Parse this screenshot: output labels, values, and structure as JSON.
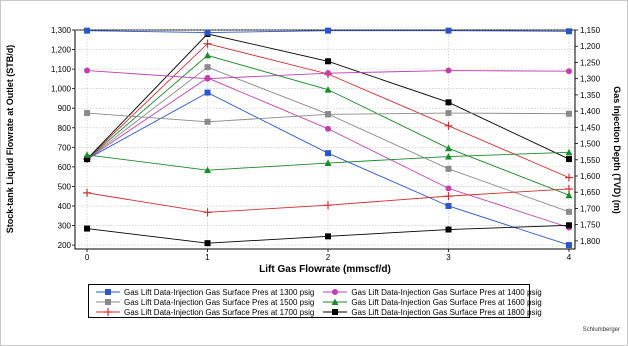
{
  "chart_data": {
    "type": "line",
    "title": "",
    "xlabel": "Lift Gas Flowrate (mmscf/d)",
    "ylabel": "Stock-tank Liquid Flowrate at Outlet (STB/d)",
    "y2label": "Gas Injection Depth (TVD) (m)",
    "x": [
      0,
      1,
      2,
      3,
      4
    ],
    "x_ticks": [
      "0",
      "1",
      "2",
      "3",
      "4"
    ],
    "xlim": [
      -0.1,
      4.05
    ],
    "ylim": [
      180,
      1300
    ],
    "y_ticks": [
      "200",
      "300",
      "400",
      "500",
      "600",
      "700",
      "800",
      "900",
      "1,000",
      "1,100",
      "1,200",
      "1,300"
    ],
    "y2lim": [
      1150,
      1825
    ],
    "y2_ticks": [
      "1,150",
      "1,200",
      "1,250",
      "1,300",
      "1,350",
      "1,400",
      "1,450",
      "1,500",
      "1,550",
      "1,600",
      "1,650",
      "1,700",
      "1,750",
      "1,800"
    ],
    "y2_inverted": true,
    "grid": true,
    "legend_position": "bottom",
    "series": [
      {
        "name": "Gas Lift Data-Injection Gas Surface Pres at 1300 psig",
        "color": "#2a56c8",
        "marker": "square",
        "axis": "y",
        "values": [
          640,
          980,
          670,
          400,
          200
        ]
      },
      {
        "name": "Gas Lift Data-Injection Gas Surface Pres at 1400 psig",
        "color": "#c040b0",
        "marker": "circle",
        "axis": "y",
        "values": [
          640,
          1055,
          795,
          490,
          290
        ]
      },
      {
        "name": "Gas Lift Data-Injection Gas Surface Pres at 1500 psig",
        "color": "#8a8a8a",
        "marker": "square",
        "axis": "y",
        "values": [
          640,
          1110,
          870,
          590,
          370
        ]
      },
      {
        "name": "Gas Lift Data-Injection Gas Surface Pres at 1600 psig",
        "color": "#1a8a2a",
        "marker": "triangle",
        "axis": "y",
        "values": [
          640,
          1170,
          995,
          695,
          455
        ]
      },
      {
        "name": "Gas Lift Data-Injection Gas Surface Pres at 1700 psig",
        "color": "#d03030",
        "marker": "plus",
        "axis": "y",
        "values": [
          640,
          1230,
          1075,
          810,
          545
        ]
      },
      {
        "name": "Gas Lift Data-Injection Gas Surface Pres at 1800 psig",
        "color": "#000000",
        "marker": "square",
        "axis": "y",
        "values": [
          640,
          1280,
          1140,
          930,
          640
        ]
      },
      {
        "name": "",
        "color": "#2a56c8",
        "marker": "square",
        "axis": "y2",
        "values": [
          1152,
          1158,
          1152,
          1152,
          1154
        ]
      },
      {
        "name": "",
        "color": "#c040b0",
        "marker": "circle",
        "axis": "y2",
        "values": [
          1275,
          1300,
          1283,
          1275,
          1277
        ]
      },
      {
        "name": "",
        "color": "#8a8a8a",
        "marker": "square",
        "axis": "y2",
        "values": [
          1406,
          1433,
          1410,
          1406,
          1408
        ]
      },
      {
        "name": "",
        "color": "#1a8a2a",
        "marker": "triangle",
        "axis": "y2",
        "values": [
          1535,
          1582,
          1560,
          1540,
          1527
        ]
      },
      {
        "name": "",
        "color": "#d03030",
        "marker": "plus",
        "axis": "y2",
        "values": [
          1652,
          1712,
          1690,
          1662,
          1640
        ]
      },
      {
        "name": "",
        "color": "#000000",
        "marker": "square",
        "axis": "y2",
        "values": [
          1762,
          1807,
          1786,
          1765,
          1752
        ]
      }
    ]
  },
  "legend": {
    "items": [
      "Gas Lift Data-Injection Gas Surface Pres at 1300 psig",
      "Gas Lift Data-Injection Gas Surface Pres at 1400 psig",
      "Gas Lift Data-Injection Gas Surface Pres at 1500 psig",
      "Gas Lift Data-Injection Gas Surface Pres at 1600 psig",
      "Gas Lift Data-Injection Gas Surface Pres at 1700 psig",
      "Gas Lift Data-Injection Gas Surface Pres at 1800 psig"
    ],
    "colors": [
      "#2a56c8",
      "#c040b0",
      "#8a8a8a",
      "#1a8a2a",
      "#d03030",
      "#000000"
    ],
    "markers": [
      "square",
      "circle",
      "square",
      "triangle",
      "plus",
      "square"
    ]
  },
  "credit": "Schlumberger"
}
